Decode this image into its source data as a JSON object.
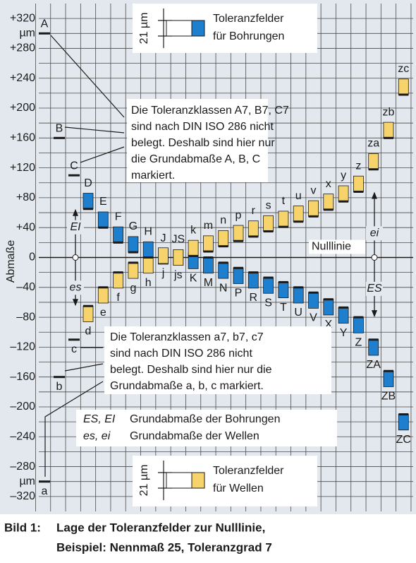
{
  "chart_data": {
    "type": "tolerance_fields",
    "y_axis_label": "Abmaße",
    "y_unit": "µm",
    "ylim": [
      -340,
      340
    ],
    "yticks": [
      {
        "value": 320,
        "label": "+320"
      },
      {
        "value": 280,
        "label": "+280"
      },
      {
        "value": 240,
        "label": "+240"
      },
      {
        "value": 200,
        "label": "+200"
      },
      {
        "value": 160,
        "label": "+160"
      },
      {
        "value": 120,
        "label": "+120"
      },
      {
        "value": 80,
        "label": "+80"
      },
      {
        "value": 40,
        "label": "+40"
      },
      0,
      {
        "value": -40,
        "label": "–40"
      },
      {
        "value": -80,
        "label": "–80"
      },
      {
        "value": -120,
        "label": "–120"
      },
      {
        "value": -160,
        "label": "–160"
      },
      {
        "value": -200,
        "label": "–200"
      },
      {
        "value": -240,
        "label": "–240"
      },
      {
        "value": -280,
        "label": "–280"
      },
      {
        "value": -320,
        "label": "–320"
      }
    ],
    "grid": true,
    "holes": {
      "color": "#1f7fcf",
      "markers": [
        {
          "label": "A",
          "value": 300
        },
        {
          "label": "B",
          "value": 160
        },
        {
          "label": "C",
          "value": 110
        }
      ],
      "fields": [
        {
          "label": "D",
          "upper": 86,
          "lower": 65
        },
        {
          "label": "E",
          "upper": 61,
          "lower": 40
        },
        {
          "label": "F",
          "upper": 41,
          "lower": 20
        },
        {
          "label": "G",
          "upper": 28,
          "lower": 7
        },
        {
          "label": "H",
          "upper": 21,
          "lower": 0
        },
        {
          "label": "J",
          "upper": 12,
          "lower": -9
        },
        {
          "label": "JS",
          "upper": 10.5,
          "lower": -10.5
        },
        {
          "label": "K",
          "upper": 6,
          "lower": -15
        },
        {
          "label": "M",
          "upper": 0,
          "lower": -21
        },
        {
          "label": "N",
          "upper": -7,
          "lower": -28
        },
        {
          "label": "P",
          "upper": -14,
          "lower": -35
        },
        {
          "label": "R",
          "upper": -20,
          "lower": -41
        },
        {
          "label": "S",
          "upper": -27,
          "lower": -48
        },
        {
          "label": "T",
          "upper": -33,
          "lower": -54
        },
        {
          "label": "U",
          "upper": -40,
          "lower": -61
        },
        {
          "label": "V",
          "upper": -47,
          "lower": -68
        },
        {
          "label": "X",
          "upper": -56,
          "lower": -77
        },
        {
          "label": "Y",
          "upper": -67,
          "lower": -88
        },
        {
          "label": "Z",
          "upper": -80,
          "lower": -101
        },
        {
          "label": "ZA",
          "upper": -110,
          "lower": -131
        },
        {
          "label": "ZB",
          "upper": -152,
          "lower": -173
        },
        {
          "label": "ZC",
          "upper": -210,
          "lower": -231
        }
      ]
    },
    "shafts": {
      "color": "#f7d36b",
      "markers": [
        {
          "label": "a",
          "value": -300
        },
        {
          "label": "b",
          "value": -160
        },
        {
          "label": "c",
          "value": -110
        }
      ],
      "fields": [
        {
          "label": "d",
          "upper": -65,
          "lower": -86
        },
        {
          "label": "e",
          "upper": -40,
          "lower": -61
        },
        {
          "label": "f",
          "upper": -20,
          "lower": -41
        },
        {
          "label": "g",
          "upper": -7,
          "lower": -28
        },
        {
          "label": "h",
          "upper": 0,
          "lower": -21
        },
        {
          "label": "j",
          "upper": 13,
          "lower": -8
        },
        {
          "label": "js",
          "upper": 10.5,
          "lower": -10.5
        },
        {
          "label": "k",
          "upper": 23,
          "lower": 2
        },
        {
          "label": "m",
          "upper": 29,
          "lower": 8
        },
        {
          "label": "n",
          "upper": 36,
          "lower": 15
        },
        {
          "label": "p",
          "upper": 43,
          "lower": 22
        },
        {
          "label": "r",
          "upper": 49,
          "lower": 28
        },
        {
          "label": "s",
          "upper": 56,
          "lower": 35
        },
        {
          "label": "t",
          "upper": 62,
          "lower": 41
        },
        {
          "label": "u",
          "upper": 69,
          "lower": 48
        },
        {
          "label": "v",
          "upper": 76,
          "lower": 55
        },
        {
          "label": "x",
          "upper": 85,
          "lower": 64
        },
        {
          "label": "y",
          "upper": 96,
          "lower": 75
        },
        {
          "label": "z",
          "upper": 109,
          "lower": 88
        },
        {
          "label": "za",
          "upper": 139,
          "lower": 118
        },
        {
          "label": "zb",
          "upper": 181,
          "lower": 160
        },
        {
          "label": "zc",
          "upper": 239,
          "lower": 218
        }
      ]
    },
    "annotations": {
      "zero_line": "Nulllinie",
      "EI": "EI",
      "es": "es",
      "ei": "ei",
      "ES": "ES"
    },
    "legends": [
      {
        "size_label": "21 µm",
        "lines": [
          "Toleranzfelder",
          "für Bohrungen"
        ]
      },
      {
        "size_label": "21 µm",
        "lines": [
          "Toleranzfelder",
          "für Wellen"
        ]
      }
    ],
    "notes": [
      {
        "lines": [
          "Die Toleranzklassen A7, B7, C7",
          "sind nach DIN ISO 286 nicht",
          "belegt. Deshalb sind hier nur",
          "die Grundabmaße A, B, C",
          "markiert."
        ]
      },
      {
        "lines": [
          "Die Toleranzklassen a7, b7, c7",
          "sind nach DIN ISO 286 nicht",
          "belegt. Deshalb sind hier nur die",
          "Grundabmaße a, b, c markiert."
        ]
      }
    ],
    "key": [
      {
        "symbols": "ES, EI",
        "text": "Grundabmaße der Bohrungen"
      },
      {
        "symbols": "es, ei",
        "text": "Grundabmaße der Wellen"
      }
    ]
  },
  "caption": {
    "label": "Bild 1:",
    "lines": [
      "Lage der Toleranzfelder zur Nulllinie,",
      "Beispiel: Nennmaß 25, Toleranzgrad 7"
    ]
  }
}
